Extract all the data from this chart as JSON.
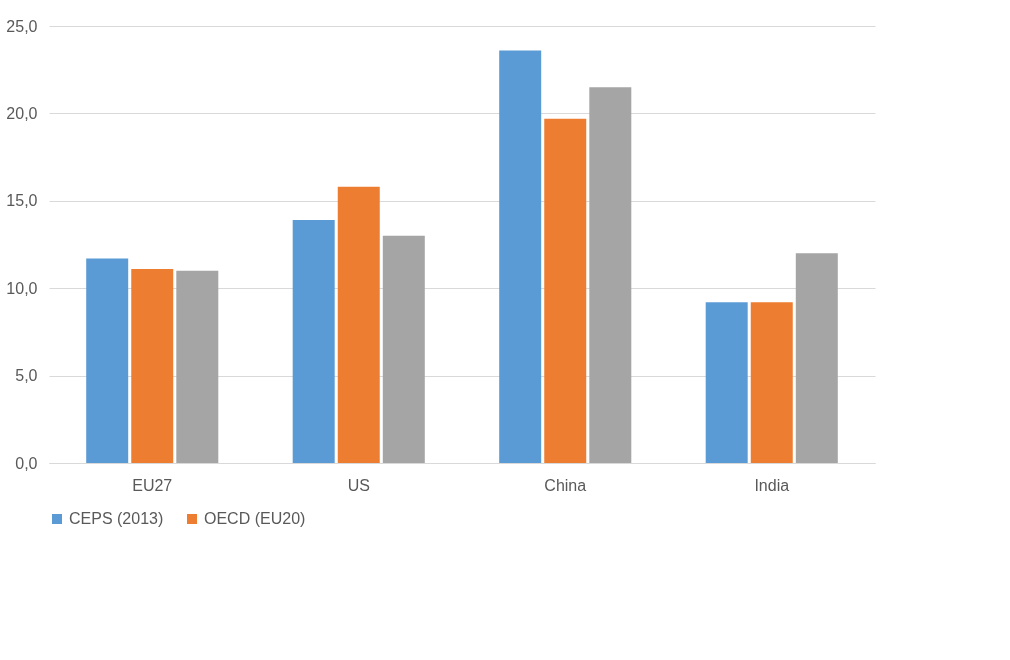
{
  "chart_data": {
    "type": "bar",
    "categories": [
      "EU27",
      "US",
      "China",
      "India"
    ],
    "series": [
      {
        "name": "CEPS (2013)",
        "color": "#5b9bd5",
        "values": [
          11.7,
          13.9,
          23.6,
          9.2
        ]
      },
      {
        "name": "OECD (EU20)",
        "color": "#ed7d31",
        "values": [
          11.1,
          15.8,
          19.7,
          9.2
        ]
      },
      {
        "color": "#a5a5a5",
        "values": [
          11.0,
          13.0,
          21.5,
          12.0
        ]
      }
    ],
    "ylim": [
      0,
      25
    ],
    "yticks": [
      {
        "value": 0,
        "label": "0,0"
      },
      {
        "value": 5,
        "label": "5,0"
      },
      {
        "value": 10,
        "label": "10,0"
      },
      {
        "value": 15,
        "label": "15,0"
      },
      {
        "value": 20,
        "label": "20,0"
      },
      {
        "value": 25,
        "label": "25,0"
      }
    ],
    "grid": "y",
    "legend": "bottom"
  }
}
